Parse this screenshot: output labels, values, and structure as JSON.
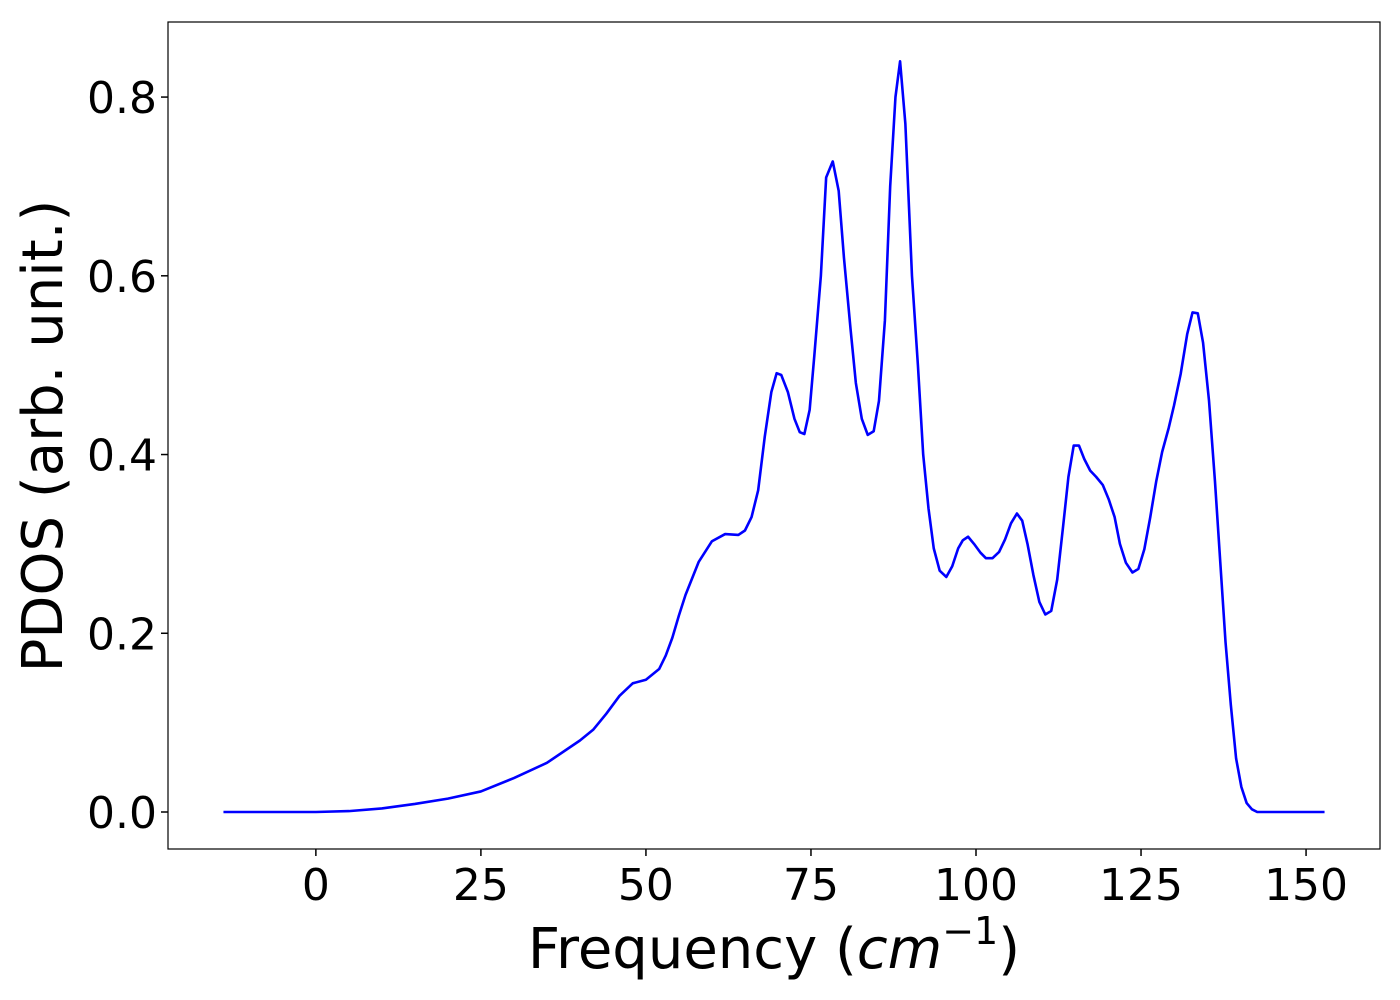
{
  "chart_data": {
    "type": "line",
    "xlabel": [
      "Frequency (",
      "cm",
      "−1",
      ")"
    ],
    "ylabel": "PDOS (arb. unit.)",
    "x": [
      -14,
      0,
      5,
      10,
      15,
      20,
      25,
      30,
      35,
      40,
      42,
      44,
      46,
      48,
      50,
      52,
      53,
      54,
      55,
      56,
      58,
      60,
      62,
      64,
      65,
      66,
      67,
      68,
      69,
      69.8,
      70.5,
      71.5,
      72.5,
      73.3,
      74,
      74.8,
      75.5,
      76.5,
      77.3,
      78.3,
      79.2,
      80,
      81,
      81.8,
      82.7,
      83.6,
      84.5,
      85.3,
      86.2,
      87,
      87.8,
      88.5,
      89.3,
      90.3,
      91.2,
      92,
      92.8,
      93.6,
      94.5,
      95.5,
      96.4,
      97.3,
      98,
      98.8,
      99.7,
      100.7,
      101.5,
      102.5,
      103.5,
      104.4,
      105.3,
      106.2,
      107,
      107.8,
      108.7,
      109.6,
      110.5,
      111.4,
      112.3,
      113.2,
      114,
      114.8,
      115.6,
      116.4,
      117.3,
      118.2,
      119.2,
      120.1,
      121,
      121.8,
      122.7,
      123.7,
      124.6,
      125.5,
      126.4,
      127.3,
      128.2,
      129.2,
      130,
      131,
      132,
      132.8,
      133.6,
      134.4,
      135.3,
      136.2,
      137,
      137.8,
      138.6,
      139.4,
      140.2,
      141,
      141.8,
      142.6,
      145,
      152.8
    ],
    "series": [
      {
        "name": "PDOS",
        "color": "#0000ff",
        "values": [
          0,
          0,
          0.001,
          0.004,
          0.009,
          0.015,
          0.023,
          0.038,
          0.055,
          0.08,
          0.092,
          0.11,
          0.13,
          0.144,
          0.148,
          0.16,
          0.175,
          0.195,
          0.22,
          0.243,
          0.28,
          0.303,
          0.311,
          0.31,
          0.315,
          0.33,
          0.36,
          0.42,
          0.47,
          0.491,
          0.489,
          0.47,
          0.44,
          0.425,
          0.423,
          0.45,
          0.51,
          0.6,
          0.71,
          0.728,
          0.695,
          0.62,
          0.54,
          0.48,
          0.44,
          0.422,
          0.426,
          0.46,
          0.55,
          0.7,
          0.8,
          0.84,
          0.77,
          0.6,
          0.5,
          0.4,
          0.34,
          0.295,
          0.27,
          0.263,
          0.275,
          0.295,
          0.304,
          0.308,
          0.3,
          0.29,
          0.284,
          0.284,
          0.291,
          0.305,
          0.323,
          0.334,
          0.326,
          0.3,
          0.265,
          0.235,
          0.221,
          0.225,
          0.26,
          0.32,
          0.375,
          0.41,
          0.41,
          0.395,
          0.382,
          0.375,
          0.366,
          0.35,
          0.33,
          0.3,
          0.279,
          0.268,
          0.272,
          0.294,
          0.33,
          0.37,
          0.403,
          0.43,
          0.455,
          0.49,
          0.535,
          0.559,
          0.558,
          0.525,
          0.46,
          0.37,
          0.28,
          0.19,
          0.12,
          0.06,
          0.028,
          0.01,
          0.003,
          0,
          0,
          0
        ]
      }
    ],
    "xlim": [
      -22.4,
      161.2
    ],
    "ylim": [
      -0.0414,
      0.884
    ],
    "xticks": [
      0,
      25,
      50,
      75,
      100,
      125,
      150
    ],
    "yticks": [
      {
        "value": 0,
        "label": "0.0"
      },
      {
        "value": 0.2,
        "label": "0.2"
      },
      {
        "value": 0.4,
        "label": "0.4"
      },
      {
        "value": 0.6,
        "label": "0.6"
      },
      {
        "value": 0.8,
        "label": "0.8"
      }
    ]
  }
}
